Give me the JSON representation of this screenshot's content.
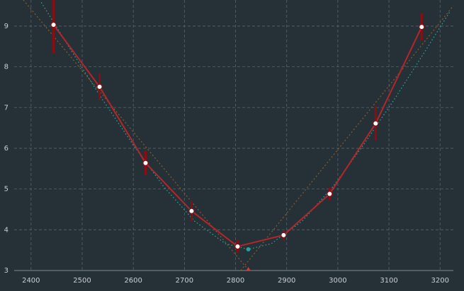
{
  "chart_data": {
    "type": "scatter",
    "x": [
      2444,
      2534,
      2624,
      2714,
      2804,
      2894,
      2984,
      3074,
      3164
    ],
    "values": [
      9.03,
      7.51,
      5.64,
      4.46,
      3.59,
      3.87,
      4.88,
      6.61,
      8.98
    ],
    "errors": [
      0.7,
      0.33,
      0.3,
      0.25,
      0.15,
      0.13,
      0.15,
      0.42,
      0.34
    ],
    "color": "#b3262b",
    "fit": {
      "color": "#2aa198",
      "x": [
        2420,
        2480,
        2540,
        2600,
        2660,
        2720,
        2780,
        2825,
        2870,
        2930,
        2990,
        3050,
        3110,
        3170,
        3220
      ],
      "values": [
        9.58,
        8.37,
        7.19,
        6.08,
        5.05,
        4.21,
        3.66,
        3.52,
        3.66,
        4.21,
        5.05,
        6.08,
        7.19,
        8.37,
        9.37
      ]
    },
    "minimum": {
      "x": 2825,
      "value": 3.52
    },
    "trend_lines": [
      {
        "color": "#8a5a2b",
        "x": [
          2385,
          2826
        ],
        "values": [
          9.64,
          3.0
        ]
      },
      {
        "color": "#8a5a2b",
        "x": [
          2810,
          3226
        ],
        "values": [
          3.0,
          9.5
        ]
      }
    ],
    "xlim": [
      2367,
      3226
    ],
    "ylim": [
      3,
      9.64
    ],
    "xticks": [
      2400,
      2500,
      2600,
      2700,
      2800,
      2900,
      3000,
      3100,
      3200
    ],
    "yticks": [
      3,
      4,
      5,
      6,
      7,
      8,
      9
    ],
    "grid": true
  }
}
